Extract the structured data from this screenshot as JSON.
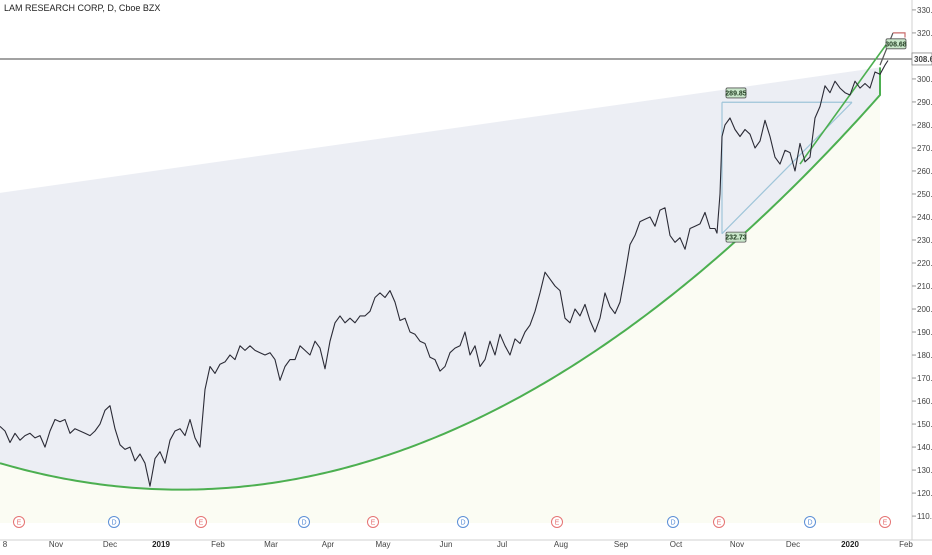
{
  "header": {
    "title": "LAM RESEARCH CORP, D, Cboe BZX"
  },
  "colors": {
    "price_line": "#2b2b36",
    "curve": "#4caf50",
    "trend": "#4caf50",
    "wedge_fill": "#e6e8f0",
    "label_fill": "#c8e6c9",
    "label_border": "#555555",
    "earnings_marker": "#e57373",
    "dividend_marker": "#5c8fd6",
    "current_line": "#444444"
  },
  "chart_data": {
    "type": "line",
    "title": "LAM RESEARCH CORP, D, Cboe BZX",
    "xlabel": "",
    "ylabel": "",
    "ylim": [
      107,
      333
    ],
    "x_ticks": [
      "8",
      "Nov",
      "Dec",
      "2019",
      "Feb",
      "Mar",
      "Apr",
      "May",
      "Jun",
      "Jul",
      "Aug",
      "Sep",
      "Oct",
      "Nov",
      "Dec",
      "2020",
      "Feb"
    ],
    "y_ticks": [
      "110.00",
      "120.00",
      "130.00",
      "140.00",
      "150.00",
      "160.00",
      "170.00",
      "180.00",
      "190.00",
      "200.00",
      "210.00",
      "220.00",
      "230.00",
      "240.00",
      "250.00",
      "260.00",
      "270.00",
      "280.00",
      "290.00",
      "300.00",
      "310.00",
      "320.00",
      "330.00"
    ],
    "current_price_label": "308.68",
    "annotations": [
      {
        "label": "289.85",
        "x": 728,
        "y": 290
      },
      {
        "label": "232.73",
        "x": 728,
        "y": 233
      },
      {
        "label": "308.68",
        "x": 888,
        "y": 317
      }
    ],
    "events": {
      "labels": [
        "E",
        "D",
        "E",
        "D",
        "E",
        "D",
        "E",
        "D",
        "E",
        "D",
        "E"
      ],
      "types": [
        "earnings",
        "dividend",
        "earnings",
        "dividend",
        "earnings",
        "dividend",
        "earnings",
        "dividend",
        "earnings",
        "dividend",
        "earnings"
      ],
      "x_index": [
        19,
        114,
        201,
        304,
        373,
        463,
        557,
        673,
        719,
        810,
        885
      ]
    },
    "series": [
      {
        "points": [
          [
            0,
            149
          ],
          [
            5,
            147
          ],
          [
            10,
            142
          ],
          [
            15,
            146
          ],
          [
            20,
            143
          ],
          [
            25,
            145
          ],
          [
            30,
            146
          ],
          [
            35,
            144
          ],
          [
            40,
            145
          ],
          [
            45,
            140
          ],
          [
            50,
            147
          ],
          [
            55,
            152
          ],
          [
            60,
            151
          ],
          [
            65,
            152
          ],
          [
            70,
            146
          ],
          [
            75,
            148
          ],
          [
            80,
            147
          ],
          [
            85,
            146
          ],
          [
            90,
            145
          ],
          [
            95,
            147
          ],
          [
            100,
            150
          ],
          [
            105,
            156
          ],
          [
            110,
            158
          ],
          [
            115,
            148
          ],
          [
            120,
            141
          ],
          [
            125,
            139
          ],
          [
            130,
            140
          ],
          [
            135,
            134
          ],
          [
            140,
            137
          ],
          [
            145,
            133
          ],
          [
            150,
            123
          ],
          [
            155,
            135
          ],
          [
            160,
            138
          ],
          [
            165,
            133
          ],
          [
            170,
            143
          ],
          [
            175,
            147
          ],
          [
            180,
            148
          ],
          [
            185,
            145
          ],
          [
            190,
            152
          ],
          [
            195,
            144
          ],
          [
            200,
            140
          ],
          [
            205,
            165
          ],
          [
            210,
            175
          ],
          [
            215,
            172
          ],
          [
            220,
            176
          ],
          [
            225,
            177
          ],
          [
            230,
            180
          ],
          [
            235,
            178
          ],
          [
            240,
            184
          ],
          [
            245,
            182
          ],
          [
            250,
            184
          ],
          [
            255,
            182
          ],
          [
            260,
            181
          ],
          [
            265,
            180
          ],
          [
            270,
            181
          ],
          [
            275,
            178
          ],
          [
            280,
            169
          ],
          [
            285,
            175
          ],
          [
            290,
            178
          ],
          [
            295,
            178
          ],
          [
            300,
            184
          ],
          [
            305,
            182
          ],
          [
            310,
            180
          ],
          [
            315,
            186
          ],
          [
            320,
            183
          ],
          [
            325,
            174
          ],
          [
            330,
            186
          ],
          [
            335,
            194
          ],
          [
            340,
            197
          ],
          [
            345,
            194
          ],
          [
            350,
            196
          ],
          [
            355,
            194
          ],
          [
            360,
            197
          ],
          [
            365,
            197
          ],
          [
            370,
            199
          ],
          [
            375,
            205
          ],
          [
            380,
            207
          ],
          [
            385,
            205
          ],
          [
            390,
            208
          ],
          [
            395,
            203
          ],
          [
            400,
            195
          ],
          [
            405,
            196
          ],
          [
            410,
            190
          ],
          [
            415,
            189
          ],
          [
            420,
            186
          ],
          [
            425,
            185
          ],
          [
            430,
            179
          ],
          [
            435,
            178
          ],
          [
            440,
            173
          ],
          [
            445,
            175
          ],
          [
            450,
            181
          ],
          [
            455,
            183
          ],
          [
            460,
            184
          ],
          [
            465,
            190
          ],
          [
            470,
            180
          ],
          [
            475,
            184
          ],
          [
            480,
            175
          ],
          [
            485,
            178
          ],
          [
            490,
            186
          ],
          [
            495,
            180
          ],
          [
            500,
            189
          ],
          [
            505,
            184
          ],
          [
            510,
            180
          ],
          [
            515,
            187
          ],
          [
            520,
            185
          ],
          [
            525,
            190
          ],
          [
            530,
            193
          ],
          [
            535,
            199
          ],
          [
            540,
            207
          ],
          [
            545,
            216
          ],
          [
            550,
            213
          ],
          [
            555,
            210
          ],
          [
            560,
            208
          ],
          [
            565,
            196
          ],
          [
            570,
            194
          ],
          [
            575,
            200
          ],
          [
            580,
            197
          ],
          [
            585,
            202
          ],
          [
            590,
            195
          ],
          [
            595,
            190
          ],
          [
            600,
            196
          ],
          [
            605,
            207
          ],
          [
            610,
            201
          ],
          [
            615,
            198
          ],
          [
            620,
            203
          ],
          [
            625,
            215
          ],
          [
            630,
            228
          ],
          [
            635,
            232
          ],
          [
            640,
            238
          ],
          [
            645,
            239
          ],
          [
            650,
            240
          ],
          [
            655,
            236
          ],
          [
            660,
            243
          ],
          [
            665,
            244
          ],
          [
            670,
            232
          ],
          [
            675,
            229
          ],
          [
            680,
            231
          ],
          [
            685,
            226
          ],
          [
            690,
            235
          ],
          [
            695,
            236
          ],
          [
            700,
            237
          ],
          [
            705,
            242
          ],
          [
            710,
            235
          ],
          [
            715,
            235
          ],
          [
            717,
            233
          ],
          [
            720,
            250
          ],
          [
            722,
            275
          ],
          [
            725,
            280
          ],
          [
            730,
            283
          ],
          [
            735,
            278
          ],
          [
            740,
            275
          ],
          [
            745,
            278
          ],
          [
            750,
            276
          ],
          [
            755,
            270
          ],
          [
            760,
            273
          ],
          [
            765,
            282
          ],
          [
            770,
            275
          ],
          [
            775,
            266
          ],
          [
            780,
            263
          ],
          [
            785,
            269
          ],
          [
            790,
            268
          ],
          [
            795,
            260
          ],
          [
            800,
            272
          ],
          [
            805,
            264
          ],
          [
            810,
            266
          ],
          [
            815,
            283
          ],
          [
            820,
            288
          ],
          [
            825,
            297
          ],
          [
            830,
            294
          ],
          [
            835,
            299
          ],
          [
            840,
            296
          ],
          [
            845,
            294
          ],
          [
            850,
            293
          ],
          [
            855,
            299
          ],
          [
            860,
            296
          ],
          [
            865,
            298
          ],
          [
            870,
            296
          ],
          [
            875,
            303
          ],
          [
            880,
            302
          ],
          [
            885,
            306
          ],
          [
            888,
            308
          ]
        ]
      }
    ]
  }
}
